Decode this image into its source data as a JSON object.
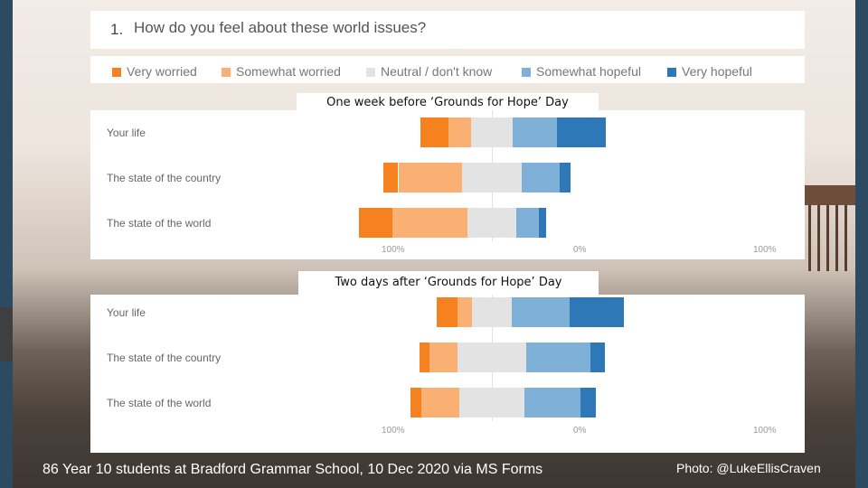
{
  "question": {
    "number": "1.",
    "text": "How do you feel about these world issues?"
  },
  "colors": {
    "very_worried": "#f6821f",
    "somewhat_worried": "#fbb073",
    "neutral": "#e3e3e3",
    "somewhat_hopeful": "#7fb0d8",
    "very_hopeful": "#2e78b8"
  },
  "legend": [
    {
      "label": "Very worried",
      "color": "#f6821f"
    },
    {
      "label": "Somewhat worried",
      "color": "#fbb073"
    },
    {
      "label": "Neutral / don't know",
      "color": "#e3e3e3"
    },
    {
      "label": "Somewhat hopeful",
      "color": "#7fb0d8"
    },
    {
      "label": "Very hopeful",
      "color": "#2e78b8"
    }
  ],
  "chart_data": [
    {
      "type": "bar",
      "title": "One week before ‘Grounds for Hope’ Day",
      "categories": [
        "Your life",
        "The state of the country",
        "The state of the world"
      ],
      "series": [
        {
          "name": "Very worried",
          "values": [
            15,
            8,
            18
          ]
        },
        {
          "name": "Somewhat worried",
          "values": [
            12,
            34,
            40
          ]
        },
        {
          "name": "Neutral / don't know",
          "values": [
            22,
            32,
            26
          ]
        },
        {
          "name": "Somewhat hopeful",
          "values": [
            24,
            20,
            12
          ]
        },
        {
          "name": "Very hopeful",
          "values": [
            26,
            6,
            4
          ]
        }
      ],
      "axis": {
        "left": "100%",
        "center": "0%",
        "right": "100%"
      }
    },
    {
      "type": "bar",
      "title": "Two days after ‘Grounds for Hope’ Day",
      "categories": [
        "Your life",
        "The state of the country",
        "The state of the world"
      ],
      "series": [
        {
          "name": "Very worried",
          "values": [
            11,
            5,
            6
          ]
        },
        {
          "name": "Somewhat worried",
          "values": [
            8,
            15,
            20
          ]
        },
        {
          "name": "Neutral / don't know",
          "values": [
            21,
            37,
            35
          ]
        },
        {
          "name": "Somewhat hopeful",
          "values": [
            31,
            34,
            30
          ]
        },
        {
          "name": "Very hopeful",
          "values": [
            29,
            8,
            8
          ]
        }
      ],
      "axis": {
        "left": "100%",
        "center": "0%",
        "right": "100%"
      }
    }
  ],
  "footer": {
    "caption": "86 Year 10 students at Bradford Grammar School, 10 Dec 2020 via MS Forms",
    "photo_credit": "Photo: @LukeEllisCraven"
  }
}
